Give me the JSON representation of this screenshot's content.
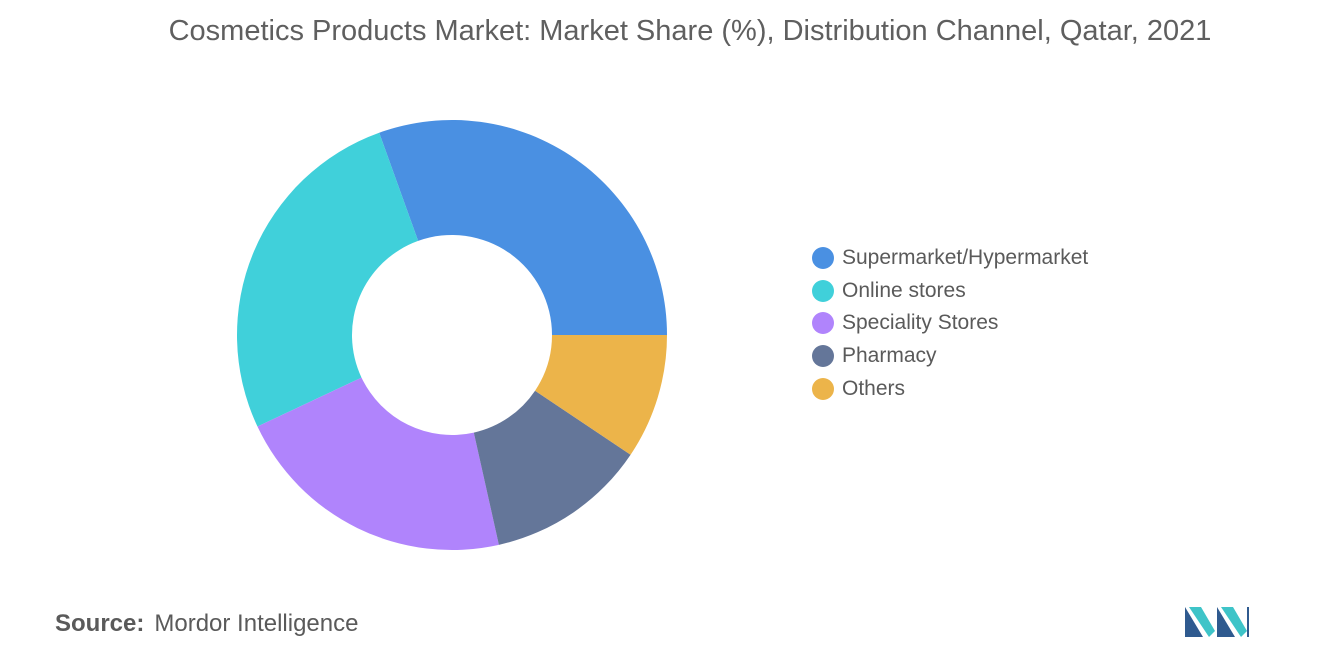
{
  "title": "Cosmetics Products Market: Market Share (%), Distribution Channel, Qatar, 2021",
  "chart_data": {
    "type": "pie",
    "variant": "donut",
    "title": "Cosmetics Products Market: Market Share (%), Distribution Channel, Qatar, 2021",
    "categories": [
      "Supermarket/Hypermarket",
      "Online stores",
      "Speciality Stores",
      "Pharmacy",
      "Others"
    ],
    "values": [
      30.5,
      26.5,
      21.5,
      12.1,
      9.4
    ],
    "colors": [
      "#4a90e2",
      "#40d0da",
      "#b084fc",
      "#647699",
      "#ecb44a"
    ],
    "legend_position": "right"
  },
  "source": {
    "label": "Source:",
    "value": "Mordor Intelligence"
  },
  "logo": {
    "icon": "mordor-intelligence-logo-icon"
  }
}
